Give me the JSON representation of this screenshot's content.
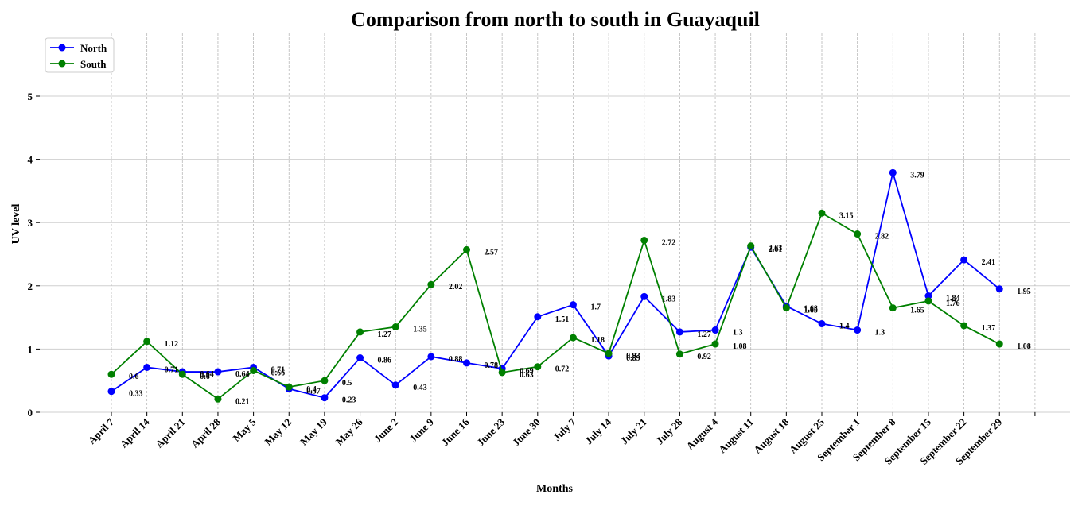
{
  "chart_data": {
    "type": "line",
    "title": "Comparison from north to south in Guayaquil",
    "xlabel": "Months",
    "ylabel": "UV level",
    "ylim": [
      0,
      6
    ],
    "yticks": [
      0,
      1,
      2,
      3,
      4,
      5
    ],
    "grid": true,
    "legend_position": "top-left",
    "categories": [
      "April 7",
      "April 14",
      "April 21",
      "April 28",
      "May 5",
      "May 12",
      "May 19",
      "May 26",
      "June 2",
      "June 9",
      "June 16",
      "June 23",
      "June 30",
      "July 7",
      "July 14",
      "July 21",
      "July 28",
      "August 4",
      "August 11",
      "August 18",
      "August 25",
      "September 1",
      "September 8",
      "September 15",
      "September 22",
      "September 29"
    ],
    "series": [
      {
        "name": "North",
        "color": "#0000ff",
        "values": [
          0.33,
          0.71,
          0.64,
          0.64,
          0.71,
          0.37,
          0.23,
          0.86,
          0.43,
          0.88,
          0.78,
          0.69,
          1.51,
          1.7,
          0.89,
          1.83,
          1.27,
          1.3,
          2.61,
          1.68,
          1.4,
          1.3,
          3.79,
          1.84,
          2.41,
          1.95
        ],
        "labels": [
          "0.33",
          "0.71",
          "0.64",
          "0.64",
          "0.71",
          "0.37",
          "0.23",
          "0.86",
          "0.43",
          "0.88",
          "0.78",
          "0.69",
          "1.51",
          "1.7",
          "0.89",
          "1.83",
          "1.27",
          "1.3",
          "2.61",
          "1.68",
          "1.4",
          "1.3",
          "3.79",
          "1.84",
          "2.41",
          "1.95"
        ]
      },
      {
        "name": "South",
        "color": "#008000",
        "values": [
          0.6,
          1.12,
          0.6,
          0.21,
          0.66,
          0.4,
          0.5,
          1.27,
          1.35,
          2.02,
          2.57,
          0.63,
          0.72,
          1.18,
          0.93,
          2.72,
          0.92,
          1.08,
          2.63,
          1.65,
          3.15,
          2.82,
          1.65,
          1.76,
          1.37,
          1.08
        ],
        "labels": [
          "0.6",
          "1.12",
          "0.6",
          "0.21",
          "0.66",
          "0.4",
          "0.5",
          "1.27",
          "1.35",
          "2.02",
          "2.57",
          "0.63",
          "0.72",
          "1.18",
          "0.93",
          "2.72",
          "0.92",
          "1.08",
          "2.63",
          "1.65",
          "3.15",
          "2.82",
          "1.65",
          "1.76",
          "1.37",
          "1.08"
        ]
      }
    ]
  }
}
